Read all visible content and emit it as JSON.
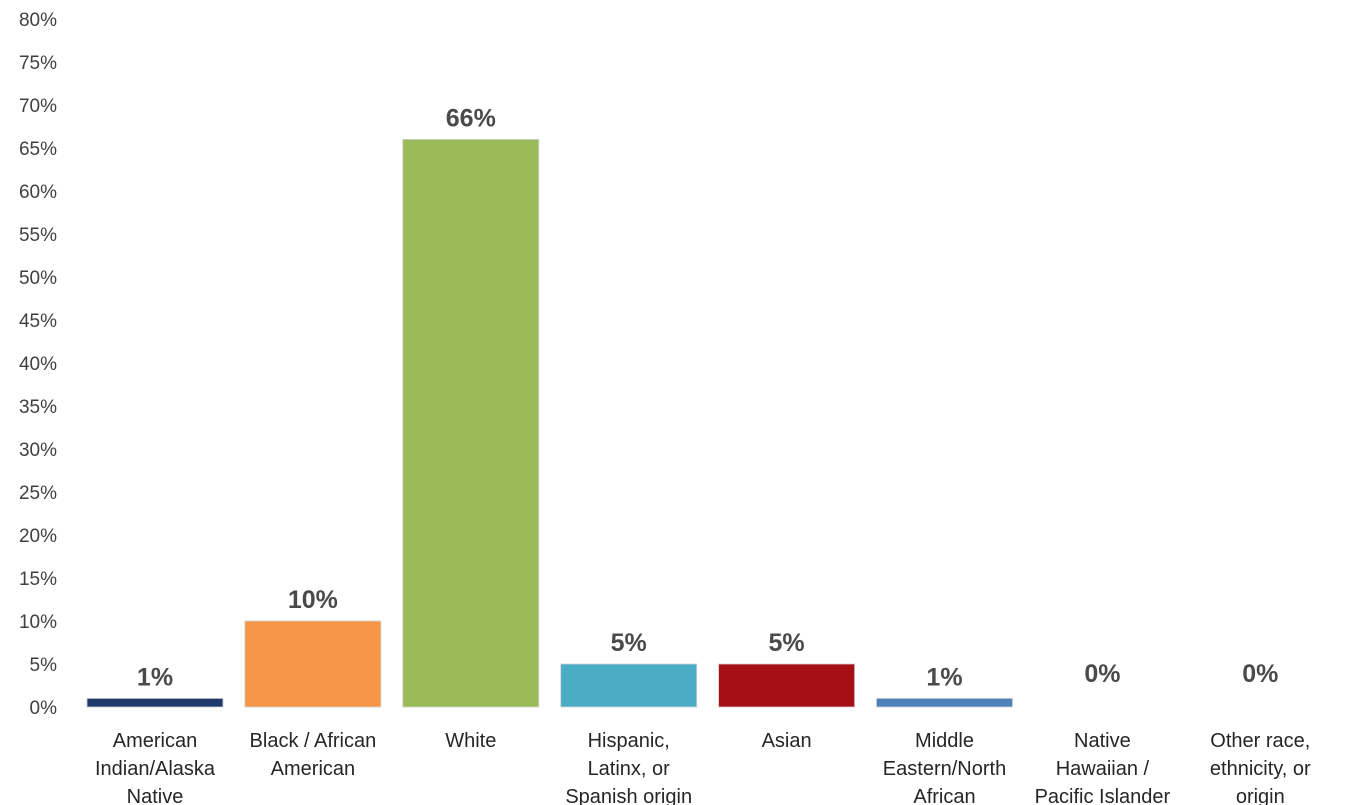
{
  "chart_data": {
    "type": "bar",
    "title": "",
    "xlabel": "",
    "ylabel": "",
    "ylim": [
      0,
      80
    ],
    "y_ticks": [
      "0%",
      "5%",
      "10%",
      "15%",
      "20%",
      "25%",
      "30%",
      "35%",
      "40%",
      "45%",
      "50%",
      "55%",
      "60%",
      "65%",
      "70%",
      "75%",
      "80%"
    ],
    "grid": false,
    "legend": "none",
    "categories": [
      [
        "American",
        "Indian/Alaska",
        "Native"
      ],
      [
        "Black / African",
        "American"
      ],
      [
        "White"
      ],
      [
        "Hispanic,",
        "Latinx, or",
        "Spanish origin"
      ],
      [
        "Asian"
      ],
      [
        "Middle",
        "Eastern/North",
        "African"
      ],
      [
        "Native",
        "Hawaiian /",
        "Pacific Islander"
      ],
      [
        "Other race,",
        "ethnicity, or",
        "origin"
      ]
    ],
    "values": [
      1,
      10,
      66,
      5,
      5,
      1,
      0,
      0
    ],
    "data_labels": [
      "1%",
      "10%",
      "66%",
      "5%",
      "5%",
      "1%",
      "0%",
      "0%"
    ],
    "colors": [
      "#1F3B6E",
      "#F79646",
      "#9BBB59",
      "#4BACC6",
      "#A50F15",
      "#4F81BD",
      "#4F81BD",
      "#4F81BD"
    ]
  }
}
